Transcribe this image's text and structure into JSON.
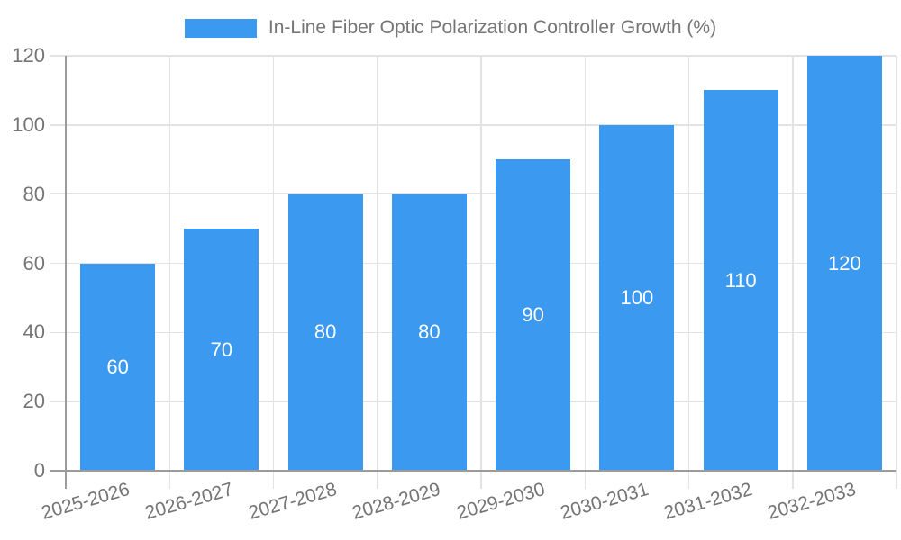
{
  "chart_data": {
    "type": "bar",
    "title": "In-Line Fiber Optic Polarization Controller Growth (%)",
    "legend": {
      "position": "top",
      "label": "In-Line Fiber Optic Polarization Controller Growth (%)"
    },
    "categories": [
      "2025-2026",
      "2026-2027",
      "2027-2028",
      "2028-2029",
      "2029-2030",
      "2030-2031",
      "2031-2032",
      "2032-2033"
    ],
    "series": [
      {
        "name": "In-Line Fiber Optic Polarization Controller Growth (%)",
        "values": [
          60,
          70,
          80,
          80,
          90,
          100,
          110,
          120
        ]
      }
    ],
    "value_labels_shown": true,
    "xlabel": "",
    "ylabel": "",
    "ylim": [
      0,
      120
    ],
    "yticks": [
      0,
      20,
      40,
      60,
      80,
      100,
      120
    ],
    "grid": true,
    "x_tick_rotation_deg": -16,
    "colors": {
      "bar": "#3b99f0",
      "value_label": "#ffffff",
      "tick_text": "#757575",
      "legend_text": "#757575",
      "gridline": "#e3e3e3",
      "axis": "#9b9b9b",
      "background": "#ffffff"
    }
  }
}
